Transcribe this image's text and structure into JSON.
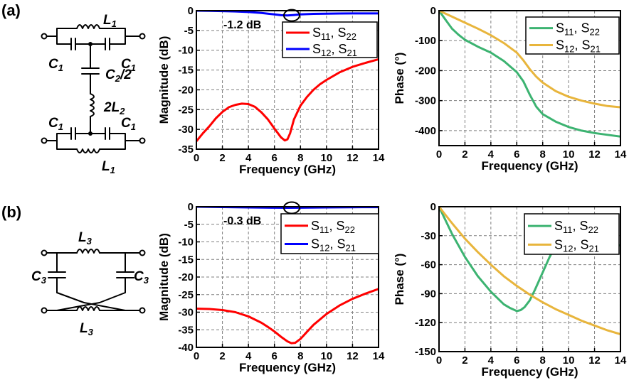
{
  "panels": [
    {
      "label": "(a)",
      "circuit": {
        "top_inductor": "L",
        "top_inductor_sub": "1",
        "cap_left": "C",
        "cap_left_sub": "1",
        "cap_right": "C",
        "cap_right_sub": "1",
        "shunt_cap": "C",
        "shunt_cap_sub": "2",
        "shunt_cap_suffix": "/2",
        "shunt_ind": "2L",
        "shunt_ind_sub": "2",
        "cap_left2": "C",
        "cap_left2_sub": "1",
        "cap_right2": "C",
        "cap_right2_sub": "1",
        "bottom_inductor": "L",
        "bottom_inductor_sub": "1"
      }
    },
    {
      "label": "(b)",
      "circuit": {
        "top_inductor": "L",
        "top_inductor_sub": "3",
        "cap_left": "C",
        "cap_left_sub": "3",
        "cap_right": "C",
        "cap_right_sub": "3",
        "bottom_inductor": "L",
        "bottom_inductor_sub": "3"
      }
    }
  ],
  "chart_data": [
    {
      "type": "line",
      "xlabel": "Frequency (GHz)",
      "ylabel": "Magnitude (dB)",
      "xlim": [
        0,
        14
      ],
      "ylim": [
        -35,
        0
      ],
      "xticks": [
        "0",
        "2",
        "4",
        "6",
        "8",
        "10",
        "12",
        "14"
      ],
      "yticks": [
        "0",
        "-5",
        "-10",
        "-15",
        "-20",
        "-25",
        "-30",
        "-35"
      ],
      "grid": true,
      "legend_position": "top-right",
      "annotation": {
        "text": "-1.2 dB",
        "x": 7,
        "y": -1.2
      },
      "series": [
        {
          "name": "S11, S22",
          "name_main": "S",
          "name_sub1": "11",
          "name_sep": ", S",
          "name_sub2": "22",
          "color": "#ff0000",
          "x": [
            0,
            0.5,
            1,
            1.5,
            2,
            2.5,
            3,
            3.5,
            4,
            4.5,
            5,
            5.5,
            6,
            6.5,
            6.8,
            7,
            7.2,
            7.5,
            8,
            8.5,
            9,
            9.5,
            10,
            11,
            12,
            13,
            14
          ],
          "y": [
            -33,
            -31,
            -29.2,
            -27.2,
            -25.6,
            -24.4,
            -23.8,
            -23.5,
            -23.6,
            -24.3,
            -25.7,
            -27.5,
            -29.8,
            -32,
            -32.8,
            -32.5,
            -31,
            -27.5,
            -24,
            -21.8,
            -20,
            -18.6,
            -17.5,
            -15.6,
            -14.2,
            -13.2,
            -12.3
          ]
        },
        {
          "name": "S12, S21",
          "name_main": "S",
          "name_sub1": "12",
          "name_sep": ", S",
          "name_sub2": "21",
          "color": "#0000ff",
          "x": [
            0,
            1,
            2,
            3,
            4,
            5,
            6,
            6.5,
            7,
            7.5,
            8,
            9,
            10,
            11,
            12,
            13,
            14
          ],
          "y": [
            0,
            -0.03,
            -0.1,
            -0.2,
            -0.35,
            -0.6,
            -0.95,
            -1.15,
            -1.2,
            -1.1,
            -0.95,
            -0.8,
            -0.75,
            -0.72,
            -0.7,
            -0.7,
            -0.7
          ]
        }
      ]
    },
    {
      "type": "line",
      "xlabel": "Frequency (GHz)",
      "ylabel": "Phase (°)",
      "xlim": [
        0,
        14
      ],
      "ylim": [
        -450,
        0
      ],
      "xticks": [
        "0",
        "2",
        "4",
        "6",
        "8",
        "10",
        "12",
        "14"
      ],
      "yticks": [
        "0",
        "-100",
        "-200",
        "-300",
        "-400"
      ],
      "ytick_values": [
        0,
        -100,
        -200,
        -300,
        -400
      ],
      "grid": true,
      "legend_position": "top-right",
      "series": [
        {
          "name": "S11, S22",
          "name_main": "S",
          "name_sub1": "11",
          "name_sep": ", S",
          "name_sub2": "22",
          "color": "#3cb371",
          "x": [
            0,
            0.5,
            1,
            1.5,
            2,
            3,
            4,
            5,
            6,
            6.5,
            7,
            7.5,
            8,
            9,
            10,
            11,
            12,
            13,
            14
          ],
          "y": [
            0,
            -30,
            -60,
            -80,
            -97,
            -120,
            -140,
            -168,
            -205,
            -235,
            -280,
            -320,
            -345,
            -370,
            -388,
            -400,
            -408,
            -414,
            -420
          ]
        },
        {
          "name": "S12, S21",
          "name_main": "S",
          "name_sub1": "12",
          "name_sep": ", S",
          "name_sub2": "21",
          "color": "#e8b53c",
          "x": [
            0,
            1,
            2,
            3,
            4,
            5,
            6,
            6.5,
            7,
            7.5,
            8,
            9,
            10,
            11,
            12,
            13,
            14
          ],
          "y": [
            0,
            -20,
            -40,
            -60,
            -82,
            -108,
            -140,
            -165,
            -195,
            -220,
            -240,
            -268,
            -287,
            -300,
            -310,
            -318,
            -322
          ]
        }
      ]
    },
    {
      "type": "line",
      "xlabel": "Frequency (GHz)",
      "ylabel": "Magnitude (dB)",
      "xlim": [
        0,
        14
      ],
      "ylim": [
        -40,
        0
      ],
      "xticks": [
        "0",
        "2",
        "4",
        "6",
        "8",
        "10",
        "12",
        "14"
      ],
      "yticks": [
        "0",
        "-5",
        "-10",
        "-15",
        "-20",
        "-25",
        "-30",
        "-35",
        "-40"
      ],
      "grid": true,
      "legend_position": "top-right",
      "annotation": {
        "text": "-0.3 dB",
        "x": 7,
        "y": -0.3
      },
      "series": [
        {
          "name": "S11, S22",
          "name_main": "S",
          "name_sub1": "11",
          "name_sep": ", S",
          "name_sub2": "22",
          "color": "#ff0000",
          "x": [
            0,
            1,
            2,
            3,
            4,
            5,
            5.5,
            6,
            6.5,
            7,
            7.3,
            7.6,
            8,
            8.5,
            9,
            10,
            11,
            12,
            13,
            14
          ],
          "y": [
            -29,
            -29.1,
            -29.4,
            -30,
            -31.2,
            -33,
            -34.2,
            -35.5,
            -37,
            -38.3,
            -38.8,
            -38.7,
            -37.6,
            -35.6,
            -33.6,
            -30.5,
            -28.1,
            -26.2,
            -24.7,
            -23.4
          ]
        },
        {
          "name": "S12, S21",
          "name_main": "S",
          "name_sub1": "12",
          "name_sep": ", S",
          "name_sub2": "21",
          "color": "#0000ff",
          "x": [
            0,
            2,
            4,
            6,
            7,
            8,
            10,
            12,
            14
          ],
          "y": [
            0,
            -0.1,
            -0.2,
            -0.28,
            -0.3,
            -0.28,
            -0.2,
            -0.15,
            -0.12
          ]
        }
      ]
    },
    {
      "type": "line",
      "xlabel": "Frequency (GHz)",
      "ylabel": "Phase (°)",
      "xlim": [
        0,
        14
      ],
      "ylim": [
        -150,
        0
      ],
      "xticks": [
        "0",
        "2",
        "4",
        "6",
        "8",
        "10",
        "12",
        "14"
      ],
      "yticks": [
        "0",
        "-30",
        "-60",
        "-90",
        "-120",
        "-150"
      ],
      "ytick_values": [
        0,
        -30,
        -60,
        -90,
        -120,
        -150
      ],
      "grid": true,
      "legend_position": "top-right",
      "series": [
        {
          "name": "S11, S22",
          "name_main": "S",
          "name_sub1": "11",
          "name_sep": ", S",
          "name_sub2": "22",
          "color": "#3cb371",
          "x": [
            0,
            1,
            2,
            3,
            4,
            5,
            5.5,
            6,
            6.3,
            6.6,
            7,
            7.4,
            7.8,
            8.2,
            8.5,
            9,
            10,
            11,
            12,
            13,
            14
          ],
          "y": [
            0,
            -28,
            -52,
            -72,
            -88,
            -101,
            -105,
            -108,
            -107,
            -104,
            -97,
            -86,
            -74,
            -62,
            -53,
            -40,
            -40,
            -40,
            -40,
            -40,
            -40
          ]
        },
        {
          "name": "S12, S21",
          "name_main": "S",
          "name_sub1": "12",
          "name_sep": ", S",
          "name_sub2": "21",
          "color": "#e8b53c",
          "x": [
            0,
            1,
            2,
            3,
            4,
            5,
            6,
            7,
            8,
            9,
            10,
            11,
            12,
            13,
            14
          ],
          "y": [
            0,
            -17,
            -33,
            -47,
            -60,
            -72,
            -82,
            -91,
            -99,
            -106,
            -112,
            -118,
            -123,
            -128,
            -132
          ]
        }
      ]
    }
  ]
}
